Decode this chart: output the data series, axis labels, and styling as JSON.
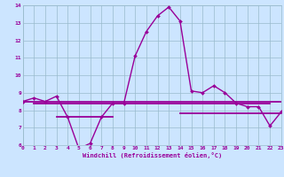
{
  "x": [
    0,
    1,
    2,
    3,
    4,
    5,
    6,
    7,
    8,
    9,
    10,
    11,
    12,
    13,
    14,
    15,
    16,
    17,
    18,
    19,
    20,
    21,
    22,
    23
  ],
  "windchill": [
    8.5,
    8.7,
    8.5,
    8.8,
    7.6,
    5.8,
    6.1,
    7.6,
    8.4,
    8.4,
    11.1,
    12.5,
    13.4,
    13.9,
    13.1,
    9.1,
    9.0,
    9.4,
    9.0,
    8.4,
    8.2,
    8.2,
    7.1,
    7.9
  ],
  "hline1_y": 8.5,
  "hline1_x": [
    0,
    23
  ],
  "hline2_y": 8.4,
  "hline2_x": [
    1,
    22
  ],
  "hline3_y": 7.6,
  "hline3_x": [
    3,
    8
  ],
  "hline4_y": 7.8,
  "hline4_x": [
    14,
    23
  ],
  "ylim": [
    6,
    14
  ],
  "xlim": [
    0,
    23
  ],
  "yticks": [
    6,
    7,
    8,
    9,
    10,
    11,
    12,
    13,
    14
  ],
  "xticks": [
    0,
    1,
    2,
    3,
    4,
    5,
    6,
    7,
    8,
    9,
    10,
    11,
    12,
    13,
    14,
    15,
    16,
    17,
    18,
    19,
    20,
    21,
    22,
    23
  ],
  "xlabel": "Windchill (Refroidissement éolien,°C)",
  "line_color": "#990099",
  "bg_color": "#cce5ff",
  "grid_color": "#99bbcc"
}
